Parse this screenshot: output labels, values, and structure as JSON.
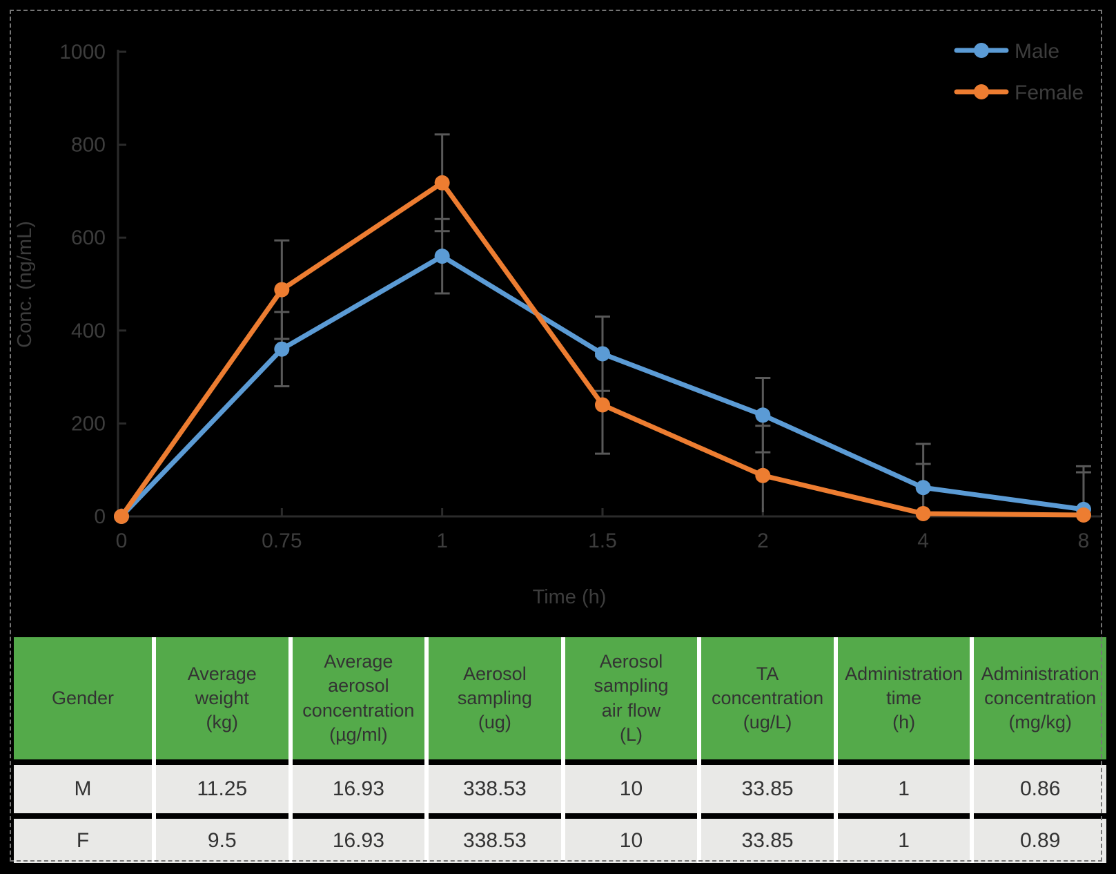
{
  "canvas": {
    "background": "#000000",
    "dashed_border_color": "#757575"
  },
  "chart_data": {
    "type": "line",
    "title": "",
    "xlabel": "Time (h)",
    "ylabel": "Conc. (ng/mL)",
    "categories": [
      "0",
      "0.75",
      "1",
      "1.5",
      "2",
      "4",
      "8"
    ],
    "x_values_hours": [
      0,
      0.75,
      1,
      1.5,
      2,
      4,
      8
    ],
    "ylim": [
      0,
      1000
    ],
    "y_ticks": [
      0,
      200,
      400,
      600,
      800,
      1000
    ],
    "grid": false,
    "legend_position": "top-right",
    "error_bars": true,
    "error_bar_color": "#595959",
    "axis_color": "#2b2b2b",
    "text_color": "#3d3d3d",
    "series": [
      {
        "name": "Male",
        "color": "#5B9BD5",
        "values": [
          0,
          360,
          560,
          350,
          218,
          62,
          15
        ],
        "errors": [
          0,
          80,
          80,
          80,
          80,
          94,
          93
        ]
      },
      {
        "name": "Female",
        "color": "#ED7D31",
        "values": [
          0,
          488,
          718,
          240,
          88,
          6,
          3
        ],
        "errors": [
          0,
          106,
          104,
          105,
          107,
          107,
          92
        ]
      }
    ]
  },
  "table": {
    "header_bg": "#54AA4A",
    "row_bg": "#E9E9E7",
    "columns": [
      "Gender",
      "Average\nweight\n(kg)",
      "Average\naerosol\nconcentration\n(µg/ml)",
      "Aerosol\nsampling\n(ug)",
      "Aerosol\nsampling\nair flow\n(L)",
      "TA\nconcentration\n(ug/L)",
      "Administration\ntime\n(h)",
      "Administration\nconcentration\n(mg/kg)"
    ],
    "rows": [
      [
        "M",
        "11.25",
        "16.93",
        "338.53",
        "10",
        "33.85",
        "1",
        "0.86"
      ],
      [
        "F",
        "9.5",
        "16.93",
        "338.53",
        "10",
        "33.85",
        "1",
        "0.89"
      ]
    ]
  }
}
